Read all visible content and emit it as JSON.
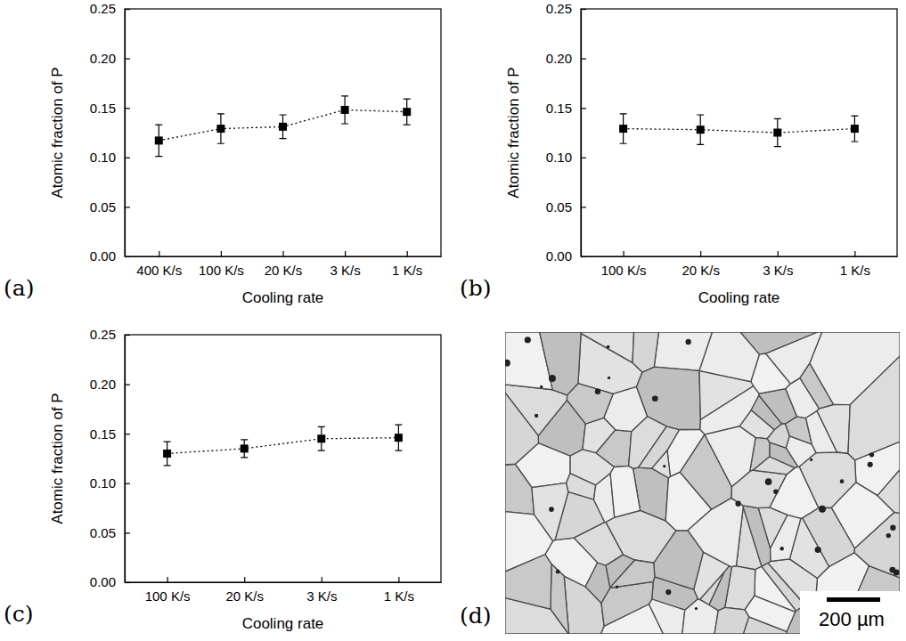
{
  "chart_data": [
    {
      "type": "line",
      "panel_label": "(a)",
      "x_label": "Cooling rate",
      "y_label": "Atomic fraction of P",
      "categories": [
        "400 K/s",
        "100 K/s",
        "20 K/s",
        "3 K/s",
        "1 K/s"
      ],
      "values": [
        0.117,
        0.129,
        0.131,
        0.148,
        0.146
      ],
      "errors": [
        0.016,
        0.015,
        0.012,
        0.014,
        0.013
      ],
      "color": "#000000",
      "marker": "square",
      "line_style": "dotted",
      "ylim": [
        0,
        0.25
      ],
      "yticks": [
        {
          "value": 0,
          "label": "0.00"
        },
        0.05,
        {
          "value": 0.1,
          "label": "0.10"
        },
        0.15,
        {
          "value": 0.2,
          "label": "0.20"
        },
        0.25
      ]
    },
    {
      "type": "line",
      "panel_label": "(b)",
      "x_label": "Cooling rate",
      "y_label": "Atomic fraction of P",
      "categories": [
        "100 K/s",
        "20 K/s",
        "3 K/s",
        "1 K/s"
      ],
      "values": [
        0.129,
        0.128,
        0.125,
        0.129
      ],
      "errors": [
        0.015,
        0.015,
        0.014,
        0.013
      ],
      "color": "#000000",
      "marker": "square",
      "line_style": "dotted",
      "ylim": [
        0,
        0.25
      ],
      "yticks": [
        {
          "value": 0,
          "label": "0.00"
        },
        0.05,
        {
          "value": 0.1,
          "label": "0.10"
        },
        0.15,
        {
          "value": 0.2,
          "label": "0.20"
        },
        0.25
      ]
    },
    {
      "type": "line",
      "panel_label": "(c)",
      "x_label": "Cooling rate",
      "y_label": "Atomic fraction of P",
      "categories": [
        "100 K/s",
        "20 K/s",
        "3 K/s",
        "1 K/s"
      ],
      "values": [
        0.13,
        0.135,
        0.145,
        0.146
      ],
      "errors": [
        0.012,
        0.009,
        0.012,
        0.013
      ],
      "color": "#000000",
      "marker": "square",
      "line_style": "dotted",
      "ylim": [
        0,
        0.25
      ],
      "yticks": [
        {
          "value": 0,
          "label": "0.00"
        },
        0.05,
        {
          "value": 0.1,
          "label": "0.10"
        },
        0.15,
        {
          "value": 0.2,
          "label": "0.20"
        },
        0.25
      ]
    }
  ],
  "image": {
    "panel_label": "(d)",
    "scale_bar_label": "200 µm"
  }
}
